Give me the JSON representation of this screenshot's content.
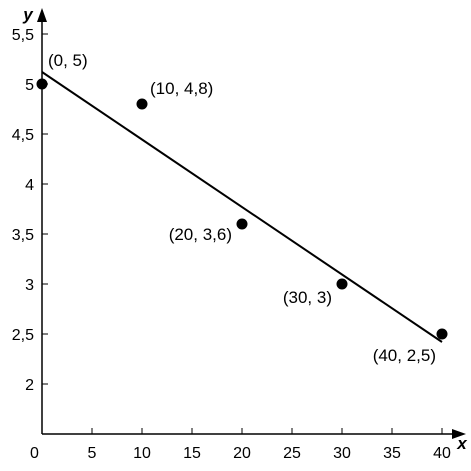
{
  "chart_data": {
    "type": "scatter",
    "xlabel": "x",
    "ylabel": "y",
    "xlim": [
      0,
      40
    ],
    "ylim": [
      1.5,
      5.5
    ],
    "x_ticks": [
      5,
      10,
      15,
      20,
      25,
      30,
      35,
      40
    ],
    "x_tick_labels": [
      "5",
      "10",
      "15",
      "20",
      "25",
      "30",
      "35",
      "40"
    ],
    "y_ticks": [
      2,
      2.5,
      3,
      3.5,
      4,
      4.5,
      5,
      5.5
    ],
    "y_tick_labels": [
      "2",
      "2,5",
      "3",
      "3,5",
      "4",
      "4,5",
      "5",
      "5,5"
    ],
    "origin_label": "0",
    "points": [
      {
        "x": 0,
        "y": 5,
        "label": "(0, 5)"
      },
      {
        "x": 10,
        "y": 4.8,
        "label": "(10, 4,8)"
      },
      {
        "x": 20,
        "y": 3.6,
        "label": "(20, 3,6)"
      },
      {
        "x": 30,
        "y": 3,
        "label": "(30, 3)"
      },
      {
        "x": 40,
        "y": 2.5,
        "label": "(40, 2,5)"
      }
    ],
    "fit_line": {
      "x_start": 0,
      "y_start": 5.12,
      "x_end": 40,
      "y_end": 2.42
    },
    "grid": false,
    "legend": "none"
  }
}
